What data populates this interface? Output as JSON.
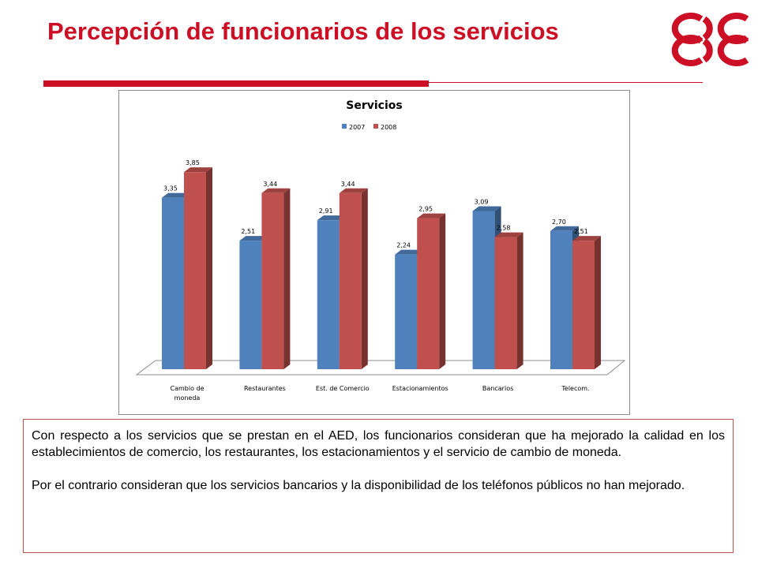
{
  "slide": {
    "title": "Percepción de funcionarios de los servicios",
    "accent_color": "#cc0f24",
    "logo": {
      "icon": "triple-c-logo",
      "color": "#cc0f24"
    }
  },
  "body_text": {
    "paragraph_1": "Con respecto a los servicios que se prestan en el AED, los funcionarios consideran que ha mejorado la calidad en los establecimientos de comercio, los restaurantes, los estacionamientos y el servicio de cambio de moneda.",
    "paragraph_2": "Por el contrario consideran que los servicios bancarios y la disponibilidad de los teléfonos públicos no han mejorado."
  },
  "chart_data": {
    "type": "bar",
    "title": "Servicios",
    "xlabel": "",
    "ylabel": "",
    "categories": [
      "Cambio de moneda",
      "Restaurantes",
      "Est. de Comercio",
      "Estacionamientos",
      "Bancarios",
      "Telecom."
    ],
    "series": [
      {
        "name": "2007",
        "color": "#4f81bd",
        "values": [
          3.35,
          2.51,
          2.91,
          2.24,
          3.09,
          2.7
        ],
        "labels": [
          "3,35",
          "2,51",
          "2,91",
          "2,24",
          "3,09",
          "2,70"
        ]
      },
      {
        "name": "2008",
        "color": "#c0504d",
        "values": [
          3.85,
          3.44,
          3.44,
          2.95,
          2.58,
          2.51
        ],
        "labels": [
          "3,85",
          "3,44",
          "3,44",
          "2,95",
          "2,58",
          "2,51"
        ]
      }
    ],
    "ylim": [
      0,
      4.5
    ],
    "grid": false,
    "legend_position": "top",
    "style": "3d-clustered-column"
  }
}
